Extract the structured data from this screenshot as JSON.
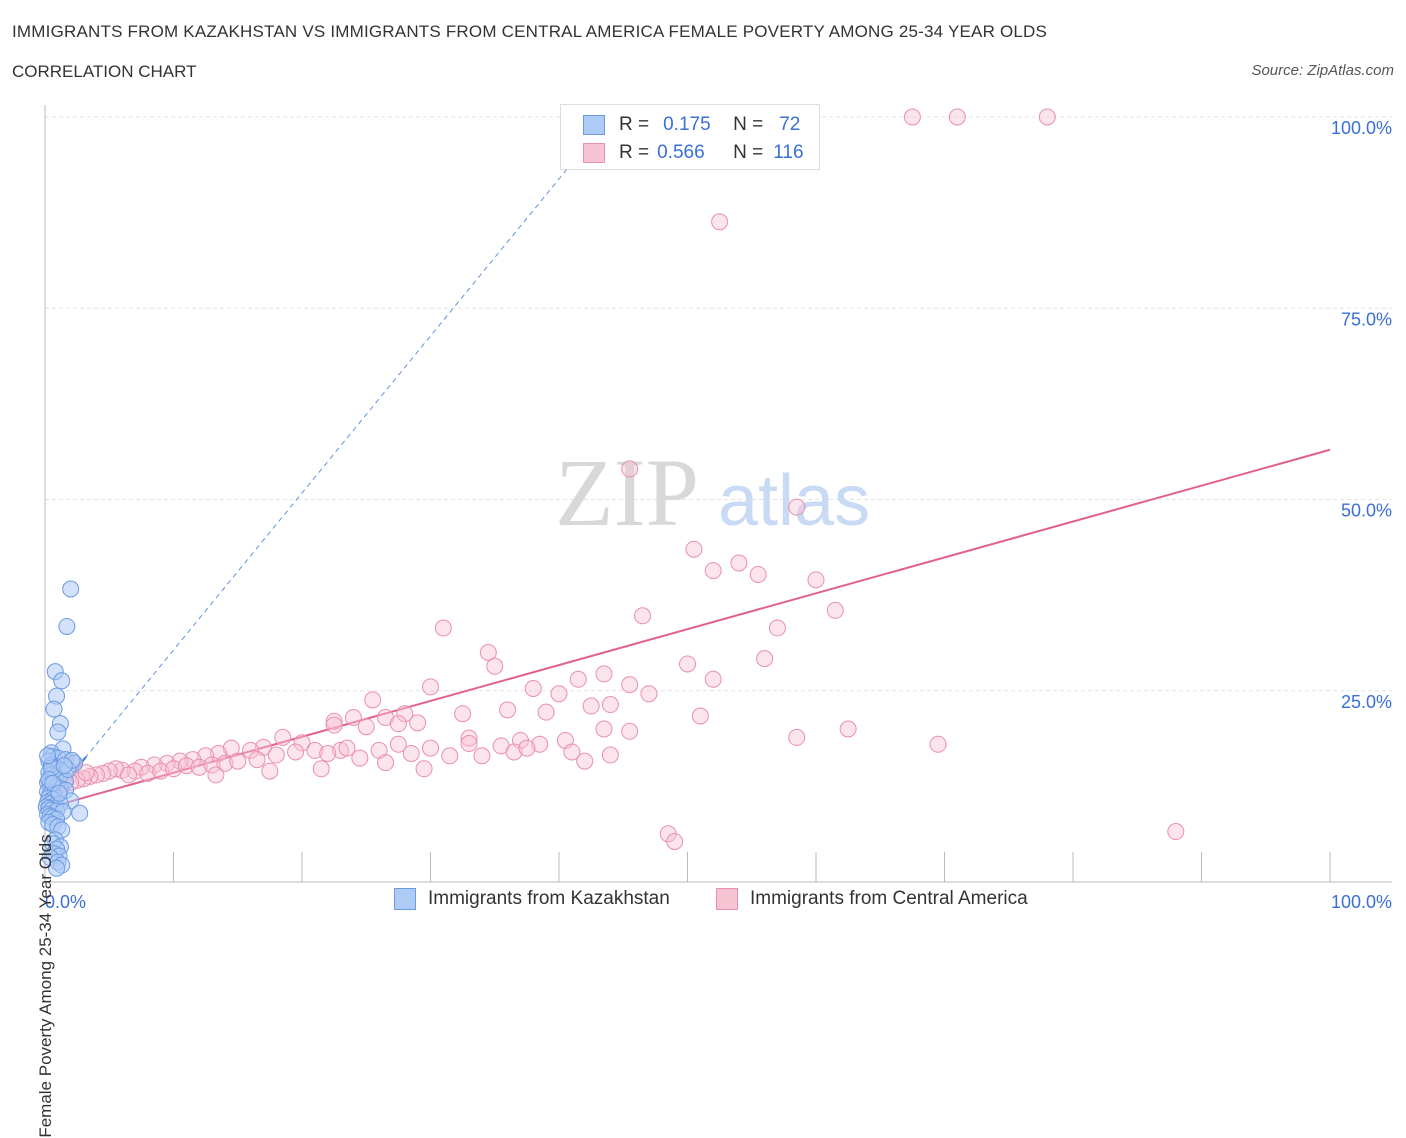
{
  "header": {
    "title": "IMMIGRANTS FROM KAZAKHSTAN VS IMMIGRANTS FROM CENTRAL AMERICA FEMALE POVERTY AMONG 25-34 YEAR OLDS",
    "subtitle": "CORRELATION CHART",
    "source": "Source: ZipAtlas.com"
  },
  "watermark": {
    "zip": "ZIP",
    "atlas": "atlas"
  },
  "legend_top": {
    "r_label": "R =",
    "n_label": "N =",
    "kazakhstan": {
      "r": "0.175",
      "n": "72"
    },
    "central_america": {
      "r": "0.566",
      "n": "116"
    }
  },
  "colors": {
    "blue_fill": "#aecbf5",
    "blue_stroke": "#6a9be0",
    "blue_line": "#3a78d6",
    "pink_fill": "#f6c3d3",
    "pink_stroke": "#ea8fae",
    "pink_line": "#e2608c",
    "tick_label": "#3a6fd8",
    "grid": "#e3e3e3"
  },
  "chart_data": {
    "type": "scatter",
    "ylabel": "Female Poverty Among 25-34 Year Olds",
    "xlim": [
      0,
      100
    ],
    "ylim": [
      0,
      100
    ],
    "x_tick_labels": [
      "0.0%",
      "100.0%"
    ],
    "y_ticks": [
      {
        "value": 25,
        "label": "25.0%"
      },
      {
        "value": 50,
        "label": "50.0%"
      },
      {
        "value": 75,
        "label": "75.0%"
      },
      {
        "value": 100,
        "label": "100.0%"
      }
    ],
    "grid": true,
    "legend_position": "bottom",
    "series": [
      {
        "name": "Immigrants from Kazakhstan",
        "color_key": "blue",
        "trend": {
          "x": [
            0,
            42
          ],
          "y": [
            9.8,
            96
          ],
          "extrapolated_from_x": 3.2
        },
        "points": [
          [
            2.0,
            38.3
          ],
          [
            1.7,
            33.4
          ],
          [
            0.8,
            27.5
          ],
          [
            1.3,
            26.3
          ],
          [
            0.9,
            24.3
          ],
          [
            0.7,
            22.6
          ],
          [
            1.2,
            20.7
          ],
          [
            1.0,
            19.6
          ],
          [
            1.4,
            17.4
          ],
          [
            0.5,
            16.9
          ],
          [
            0.6,
            16.4
          ],
          [
            1.0,
            16.2
          ],
          [
            1.6,
            16.0
          ],
          [
            2.3,
            15.5
          ],
          [
            0.3,
            15.8
          ],
          [
            0.5,
            15.3
          ],
          [
            0.7,
            15.0
          ],
          [
            1.0,
            14.8
          ],
          [
            1.3,
            14.6
          ],
          [
            0.3,
            14.3
          ],
          [
            0.5,
            14.0
          ],
          [
            0.8,
            13.8
          ],
          [
            1.1,
            13.6
          ],
          [
            1.6,
            13.2
          ],
          [
            0.2,
            13.0
          ],
          [
            0.4,
            12.8
          ],
          [
            0.6,
            12.6
          ],
          [
            0.9,
            12.4
          ],
          [
            1.2,
            12.2
          ],
          [
            1.6,
            12.0
          ],
          [
            0.2,
            11.8
          ],
          [
            0.4,
            11.5
          ],
          [
            0.7,
            11.3
          ],
          [
            0.3,
            11.0
          ],
          [
            0.6,
            10.8
          ],
          [
            2.0,
            10.6
          ],
          [
            0.2,
            10.4
          ],
          [
            0.4,
            10.2
          ],
          [
            0.8,
            10.0
          ],
          [
            1.2,
            10.2
          ],
          [
            0.1,
            9.8
          ],
          [
            0.3,
            9.6
          ],
          [
            0.5,
            9.4
          ],
          [
            0.9,
            9.3
          ],
          [
            1.4,
            9.2
          ],
          [
            2.7,
            9.0
          ],
          [
            0.2,
            8.8
          ],
          [
            0.4,
            8.6
          ],
          [
            0.6,
            8.4
          ],
          [
            0.9,
            8.2
          ],
          [
            0.3,
            7.8
          ],
          [
            0.6,
            7.5
          ],
          [
            1.0,
            7.2
          ],
          [
            1.3,
            6.8
          ],
          [
            0.8,
            5.5
          ],
          [
            0.6,
            5.0
          ],
          [
            1.2,
            4.6
          ],
          [
            0.9,
            4.3
          ],
          [
            0.7,
            3.7
          ],
          [
            1.1,
            3.4
          ],
          [
            0.4,
            3.2
          ],
          [
            1.0,
            2.6
          ],
          [
            1.3,
            2.2
          ],
          [
            0.9,
            1.8
          ],
          [
            0.5,
            14.9
          ],
          [
            1.8,
            14.7
          ],
          [
            0.3,
            13.4
          ],
          [
            2.1,
            15.9
          ],
          [
            0.6,
            12.9
          ],
          [
            1.5,
            15.2
          ],
          [
            0.2,
            16.5
          ],
          [
            1.1,
            11.6
          ]
        ]
      },
      {
        "name": "Immigrants from Central America",
        "color_key": "pink",
        "trend": {
          "x": [
            0,
            100
          ],
          "y": [
            9.6,
            56.5
          ]
        },
        "points": [
          [
            67.5,
            100
          ],
          [
            71.0,
            100
          ],
          [
            78.0,
            100
          ],
          [
            52.5,
            86.3
          ],
          [
            45.5,
            54.0
          ],
          [
            58.5,
            49.0
          ],
          [
            50.5,
            43.5
          ],
          [
            52.0,
            40.7
          ],
          [
            54.0,
            41.7
          ],
          [
            55.5,
            40.2
          ],
          [
            60.0,
            39.5
          ],
          [
            61.5,
            35.5
          ],
          [
            46.5,
            34.8
          ],
          [
            57.0,
            33.2
          ],
          [
            31.0,
            33.2
          ],
          [
            34.5,
            30.0
          ],
          [
            56.0,
            29.2
          ],
          [
            35.0,
            28.2
          ],
          [
            50.0,
            28.5
          ],
          [
            43.5,
            27.2
          ],
          [
            41.5,
            26.5
          ],
          [
            52.0,
            26.5
          ],
          [
            45.5,
            25.8
          ],
          [
            30.0,
            25.5
          ],
          [
            38.0,
            25.3
          ],
          [
            40.0,
            24.6
          ],
          [
            47.0,
            24.6
          ],
          [
            25.5,
            23.8
          ],
          [
            44.0,
            23.2
          ],
          [
            42.5,
            23.0
          ],
          [
            28.0,
            22.0
          ],
          [
            32.5,
            22.0
          ],
          [
            36.0,
            22.5
          ],
          [
            39.0,
            22.2
          ],
          [
            51.0,
            21.7
          ],
          [
            26.5,
            21.5
          ],
          [
            24.0,
            21.5
          ],
          [
            22.5,
            21.0
          ],
          [
            25.0,
            20.3
          ],
          [
            29.0,
            20.8
          ],
          [
            33.0,
            18.8
          ],
          [
            43.5,
            20.0
          ],
          [
            45.5,
            19.7
          ],
          [
            62.5,
            20.0
          ],
          [
            58.5,
            18.9
          ],
          [
            37.0,
            18.5
          ],
          [
            40.5,
            18.5
          ],
          [
            35.5,
            17.8
          ],
          [
            30.0,
            17.5
          ],
          [
            23.0,
            17.2
          ],
          [
            28.5,
            16.8
          ],
          [
            20.0,
            18.2
          ],
          [
            18.5,
            18.9
          ],
          [
            17.0,
            17.6
          ],
          [
            16.0,
            17.2
          ],
          [
            14.5,
            17.5
          ],
          [
            13.5,
            16.8
          ],
          [
            12.5,
            16.5
          ],
          [
            11.5,
            16.0
          ],
          [
            10.5,
            15.8
          ],
          [
            9.5,
            15.5
          ],
          [
            8.5,
            15.3
          ],
          [
            7.5,
            15.0
          ],
          [
            7.0,
            14.5
          ],
          [
            6.0,
            14.6
          ],
          [
            5.5,
            14.8
          ],
          [
            5.0,
            14.5
          ],
          [
            4.5,
            14.2
          ],
          [
            4.0,
            14.0
          ],
          [
            3.5,
            13.8
          ],
          [
            3.0,
            13.5
          ],
          [
            2.5,
            13.3
          ],
          [
            2.0,
            13.0
          ],
          [
            1.5,
            13.0
          ],
          [
            1.0,
            12.6
          ],
          [
            1.2,
            14.8
          ],
          [
            2.2,
            15.6
          ],
          [
            3.2,
            14.3
          ],
          [
            6.5,
            14.0
          ],
          [
            8.0,
            14.2
          ],
          [
            9.0,
            14.5
          ],
          [
            10.0,
            14.8
          ],
          [
            11.0,
            15.2
          ],
          [
            12.0,
            15.0
          ],
          [
            13.0,
            15.3
          ],
          [
            14.0,
            15.5
          ],
          [
            15.0,
            15.8
          ],
          [
            16.5,
            16.0
          ],
          [
            18.0,
            16.6
          ],
          [
            19.5,
            17.0
          ],
          [
            21.0,
            17.2
          ],
          [
            22.0,
            16.8
          ],
          [
            23.5,
            17.5
          ],
          [
            24.5,
            16.2
          ],
          [
            26.0,
            17.2
          ],
          [
            27.5,
            18.0
          ],
          [
            31.5,
            16.5
          ],
          [
            34.0,
            16.5
          ],
          [
            36.5,
            17.0
          ],
          [
            38.5,
            18.0
          ],
          [
            41.0,
            17.0
          ],
          [
            44.0,
            16.6
          ],
          [
            17.5,
            14.5
          ],
          [
            21.5,
            14.8
          ],
          [
            26.5,
            15.6
          ],
          [
            29.5,
            14.8
          ],
          [
            13.3,
            14.0
          ],
          [
            33.0,
            18.1
          ],
          [
            22.5,
            20.5
          ],
          [
            27.5,
            20.7
          ],
          [
            37.5,
            17.5
          ],
          [
            42.0,
            15.8
          ],
          [
            48.5,
            6.3
          ],
          [
            49.0,
            5.3
          ],
          [
            69.5,
            18.0
          ],
          [
            88.0,
            6.6
          ]
        ]
      }
    ]
  }
}
